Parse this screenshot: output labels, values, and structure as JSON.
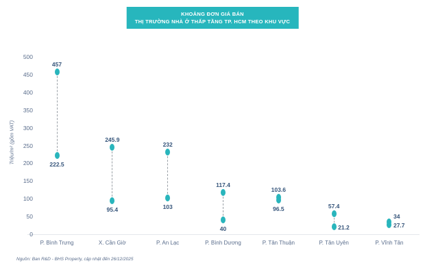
{
  "colors": {
    "teal": "#29b5bc",
    "title_bg": "#27b6bd",
    "title_text": "#ffffff",
    "value_label": "#35547a",
    "axis_text": "#5a6d8c",
    "dash": "#9aa0a6",
    "axis_line": "#e4e7eb",
    "background": "#ffffff"
  },
  "header": {
    "title_line1": "KHOẢNG ĐƠN GIÁ BÁN",
    "title_line2": "THỊ TRƯỜNG NHÀ Ở THẤP TẦNG TP. HCM THEO KHU VỰC"
  },
  "footer": {
    "source": "Nguồn: Ban R&D - BHS Property, cập nhật đến 26/12/2025"
  },
  "chart_data": {
    "type": "dumbbell",
    "title": "KHOẢNG ĐƠN GIÁ BÁN - THỊ TRƯỜNG NHÀ Ở THẤP TẦNG TP. HCM THEO KHU VỰC",
    "ylabel": "Triệu/m² (gồm VAT)",
    "ylim": [
      0,
      500
    ],
    "ytick_step": 50,
    "grid": false,
    "legend": "none",
    "categories": [
      "P. Bình Trưng",
      "X. Cần Giờ",
      "P. An Lạc",
      "P. Bình Dương",
      "P. Tân Thuận",
      "P. Tân Uyên",
      "P. Vĩnh Tân"
    ],
    "series": [
      {
        "name": "max",
        "values": [
          457,
          245.9,
          232,
          117.4,
          103.6,
          57.4,
          34
        ]
      },
      {
        "name": "min",
        "values": [
          222.5,
          95.4,
          103,
          40,
          96.5,
          21.2,
          27.7
        ]
      }
    ],
    "label_placement": [
      [
        "above",
        "below"
      ],
      [
        "above",
        "below"
      ],
      [
        "above",
        "below"
      ],
      [
        "above",
        "below"
      ],
      [
        "above",
        "below"
      ],
      [
        "above",
        "right"
      ],
      [
        "right-above",
        "right"
      ]
    ]
  }
}
